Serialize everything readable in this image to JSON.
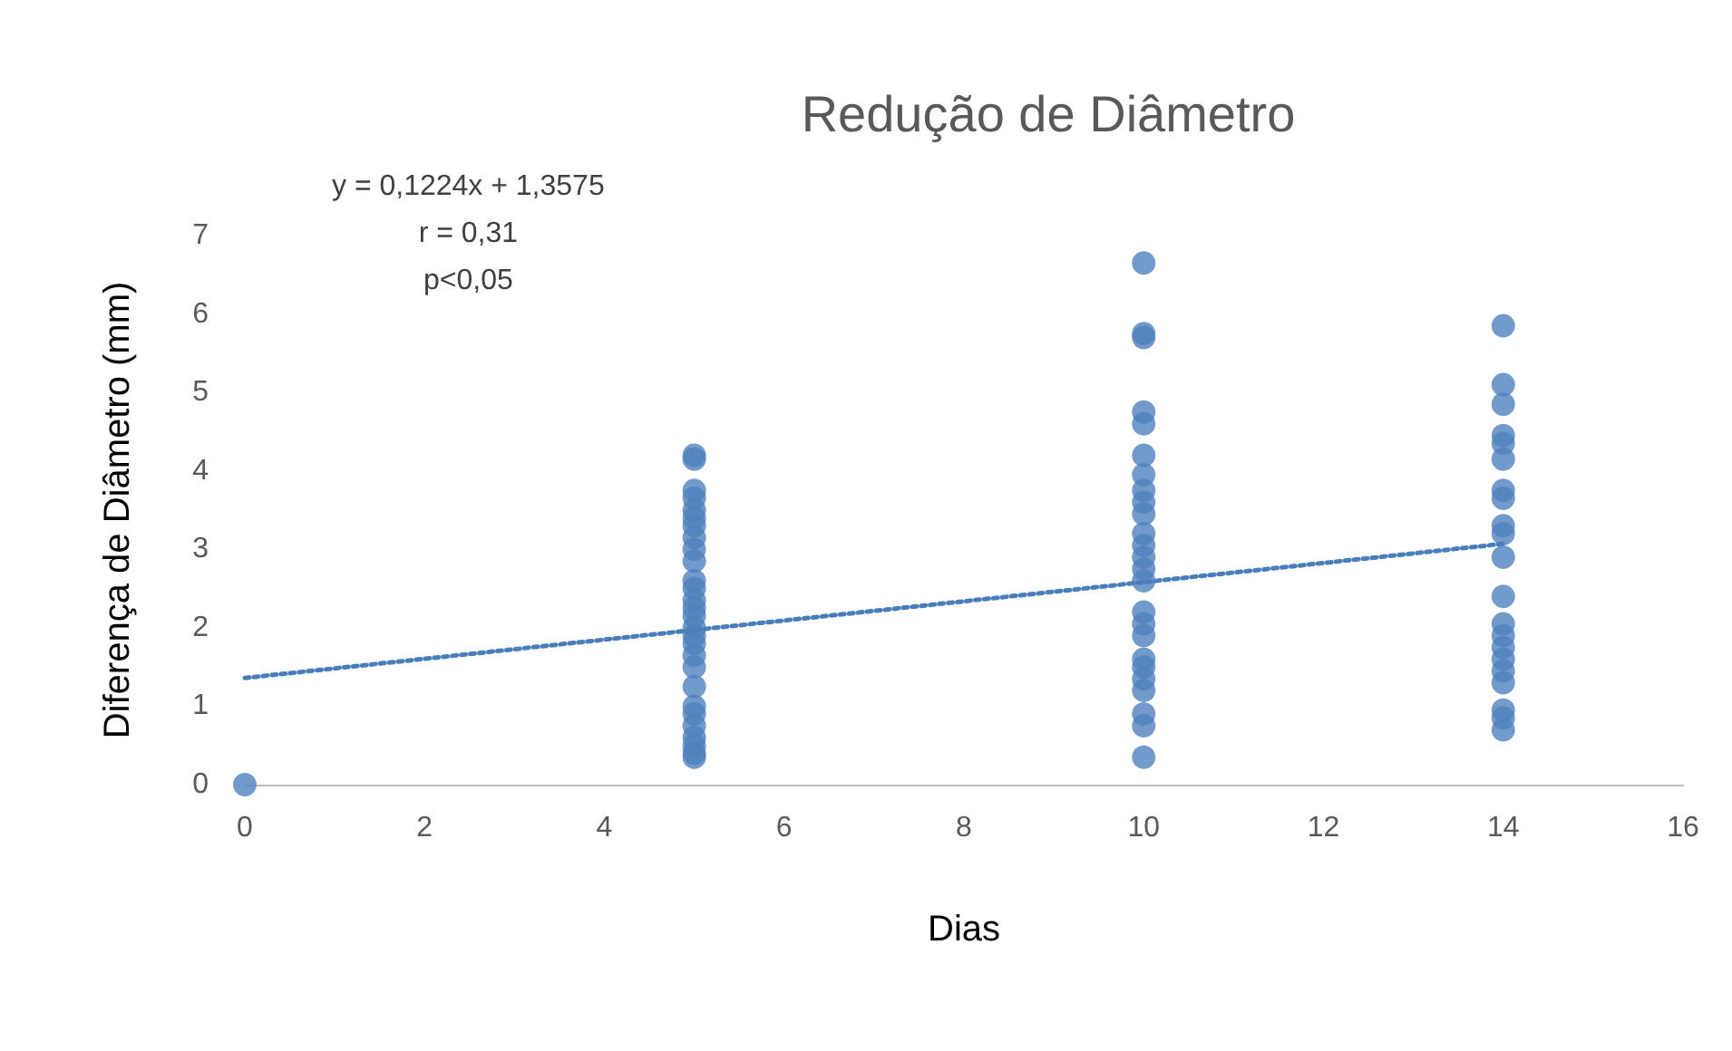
{
  "chart_data": {
    "type": "scatter",
    "title": "Redução de Diâmetro",
    "xlabel": "Dias",
    "ylabel": "Diferença de Diâmetro (mm)",
    "xlim": [
      0,
      16
    ],
    "xticks": [
      0,
      2,
      4,
      6,
      8,
      10,
      12,
      14,
      16
    ],
    "ylim": [
      0,
      7
    ],
    "yticks": [
      0,
      1,
      2,
      3,
      4,
      5,
      6,
      7
    ],
    "grid": false,
    "marker": "circle",
    "annotations": [
      "y = 0,1224x + 1,3575",
      "r = 0,31",
      "p<0,05"
    ],
    "series": [
      {
        "type": "scatter",
        "color": "#4f81bd",
        "x": [
          0,
          5,
          5,
          5,
          5,
          5,
          5,
          5,
          5,
          5,
          5,
          5,
          5,
          5,
          5,
          5,
          5,
          5,
          5,
          5,
          5,
          5,
          5,
          5,
          5,
          5,
          5,
          5,
          5,
          10,
          10,
          10,
          10,
          10,
          10,
          10,
          10,
          10,
          10,
          10,
          10,
          10,
          10,
          10,
          10,
          10,
          10,
          10,
          10,
          10,
          10,
          10,
          10,
          10,
          14,
          14,
          14,
          14,
          14,
          14,
          14,
          14,
          14,
          14,
          14,
          14,
          14,
          14,
          14,
          14,
          14,
          14,
          14,
          14,
          14
        ],
        "values": [
          0,
          4.2,
          4.15,
          3.75,
          3.65,
          3.5,
          3.4,
          3.3,
          3.15,
          3.0,
          2.85,
          2.6,
          2.5,
          2.35,
          2.25,
          2.15,
          2.0,
          1.9,
          1.8,
          1.65,
          1.5,
          1.25,
          1.0,
          0.9,
          0.75,
          0.6,
          0.5,
          0.4,
          0.35,
          6.65,
          5.75,
          5.7,
          4.75,
          4.6,
          4.2,
          3.95,
          3.75,
          3.6,
          3.45,
          3.2,
          3.05,
          2.9,
          2.75,
          2.6,
          2.2,
          2.05,
          1.9,
          1.6,
          1.5,
          1.35,
          1.2,
          0.9,
          0.75,
          0.35,
          5.85,
          5.1,
          4.85,
          4.45,
          4.35,
          4.15,
          3.75,
          3.65,
          3.3,
          3.2,
          2.9,
          2.4,
          2.05,
          1.9,
          1.75,
          1.6,
          1.45,
          1.3,
          0.95,
          0.85,
          0.7
        ]
      },
      {
        "type": "line",
        "color": "#4a7ebb",
        "line_style": "dotted",
        "marker": "none",
        "x": [
          0,
          14
        ],
        "values": [
          1.36,
          3.07
        ]
      }
    ]
  }
}
